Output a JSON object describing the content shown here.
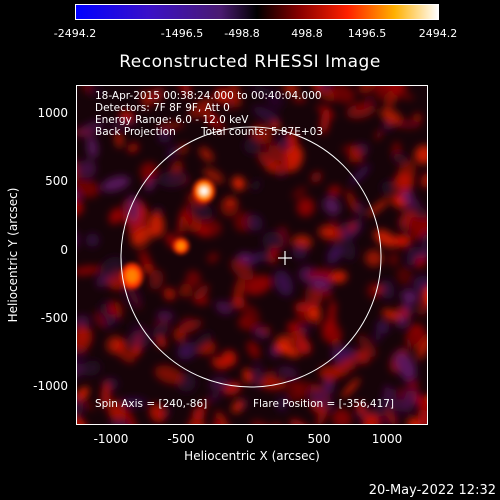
{
  "colorbar": {
    "ticks": [
      "-2494.2",
      "-1496.5",
      "-498.8",
      "498.8",
      "1496.5",
      "2494.2"
    ]
  },
  "image": {
    "title": "Reconstructed RHESSI Image",
    "annotations": {
      "time_range": "18-Apr-2015 00:38:24.000 to 00:40:04.000",
      "detectors": "Detectors: 7F 8F 9F, Att 0",
      "energy": "Energy Range: 6.0 - 12.0 keV",
      "method": "Back Projection",
      "counts": "Total counts: 5.87E+03",
      "spin_axis": "Spin Axis = [240,-86]",
      "flare_position": "Flare Position = [-356,417]"
    },
    "y_ticks": [
      "1000",
      "500",
      "0",
      "-500",
      "-1000"
    ],
    "x_ticks": [
      "-1000",
      "-500",
      "0",
      "500",
      "1000"
    ],
    "xlabel": "Heliocentric X (arcsec)",
    "ylabel": "Heliocentric Y (arcsec)"
  },
  "footer": {
    "date": "20-May-2022 12:32"
  },
  "colors": {
    "background": "#000000",
    "foreground": "#ffffff"
  }
}
